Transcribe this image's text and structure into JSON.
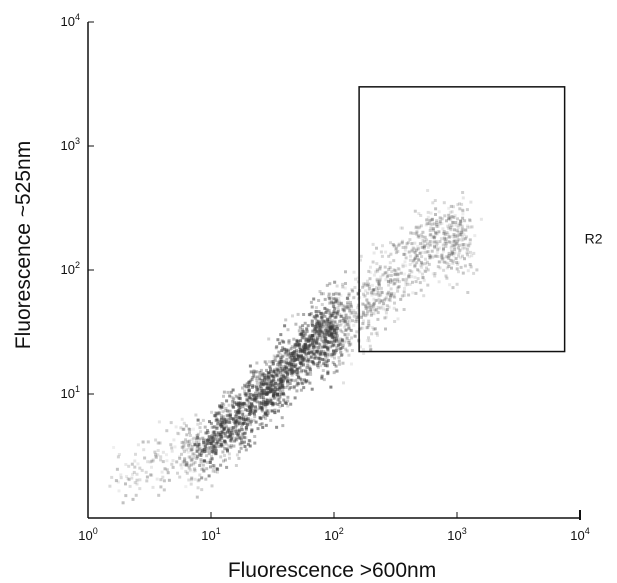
{
  "chart_data": {
    "type": "scatter",
    "title": "",
    "xlabel": "Fluorescence >600nm",
    "ylabel": "Fluorescence ~525nm",
    "x_scale": "log",
    "y_scale": "log",
    "xlim": [
      1,
      10000
    ],
    "ylim": [
      1,
      10000
    ],
    "x_ticks": [
      {
        "base": "10",
        "exp": "0",
        "value": 1
      },
      {
        "base": "10",
        "exp": "1",
        "value": 10
      },
      {
        "base": "10",
        "exp": "2",
        "value": 100
      },
      {
        "base": "10",
        "exp": "3",
        "value": 1000
      },
      {
        "base": "10",
        "exp": "4",
        "value": 10000
      }
    ],
    "y_ticks": [
      {
        "base": "10",
        "exp": "1",
        "value": 10
      },
      {
        "base": "10",
        "exp": "2",
        "value": 100
      },
      {
        "base": "10",
        "exp": "3",
        "value": 1000
      },
      {
        "base": "10",
        "exp": "4",
        "value": 10000
      }
    ],
    "grid": false,
    "point_color": "#3a3a3a",
    "population": {
      "description_points": [
        {
          "x": 2,
          "y": 2.2
        },
        {
          "x": 5,
          "y": 3
        },
        {
          "x": 10,
          "y": 4
        },
        {
          "x": 20,
          "y": 8
        },
        {
          "x": 40,
          "y": 16
        },
        {
          "x": 70,
          "y": 28
        },
        {
          "x": 150,
          "y": 45
        },
        {
          "x": 300,
          "y": 90
        },
        {
          "x": 600,
          "y": 180
        }
      ]
    },
    "regions": [
      {
        "name": "R2",
        "x_range": [
          160,
          7500
        ],
        "y_range": [
          22,
          3000
        ]
      }
    ]
  }
}
